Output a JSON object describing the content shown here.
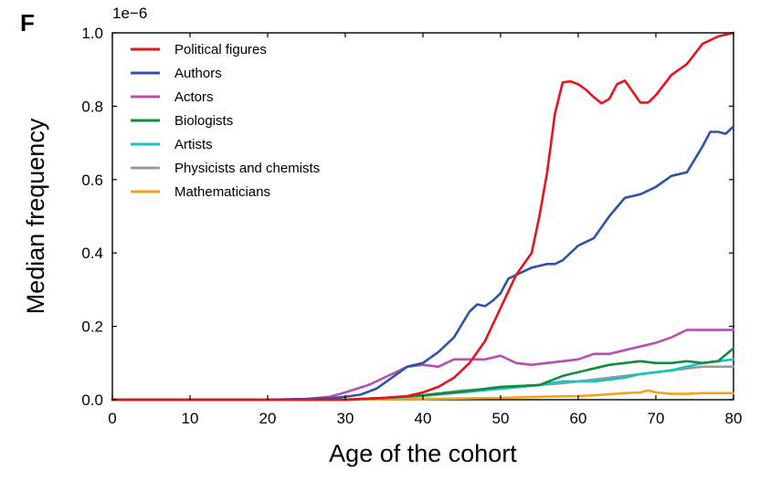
{
  "panel_letter": "F",
  "chart_data": {
    "type": "line",
    "title": "",
    "xlabel": "Age of the cohort",
    "ylabel": "Median frequency",
    "y_scale_note": "1e−6",
    "xlim": [
      0,
      80
    ],
    "ylim": [
      0,
      1.0
    ],
    "xticks": [
      0,
      10,
      20,
      30,
      40,
      50,
      60,
      70,
      80
    ],
    "yticks": [
      0.0,
      0.2,
      0.4,
      0.6,
      0.8,
      1.0
    ],
    "xtick_labels": [
      "0",
      "10",
      "20",
      "30",
      "40",
      "50",
      "60",
      "70",
      "80"
    ],
    "ytick_labels": [
      "0.0",
      "0.2",
      "0.4",
      "0.6",
      "0.8",
      "1.0"
    ],
    "grid": false,
    "legend_position": "top-left",
    "series": [
      {
        "name": "Political figures",
        "color": "#e8141b",
        "x": [
          0,
          20,
          30,
          35,
          38,
          40,
          42,
          44,
          46,
          48,
          50,
          52,
          54,
          55,
          56,
          57,
          58,
          59,
          60,
          61,
          62,
          63,
          64,
          65,
          66,
          67,
          68,
          69,
          70,
          72,
          74,
          76,
          78,
          80
        ],
        "y": [
          0,
          0,
          0,
          0.005,
          0.01,
          0.02,
          0.035,
          0.06,
          0.1,
          0.16,
          0.25,
          0.34,
          0.4,
          0.5,
          0.62,
          0.78,
          0.865,
          0.868,
          0.86,
          0.845,
          0.825,
          0.808,
          0.82,
          0.86,
          0.87,
          0.84,
          0.81,
          0.81,
          0.83,
          0.885,
          0.915,
          0.97,
          0.99,
          1.0
        ]
      },
      {
        "name": "Authors",
        "color": "#2c54a8",
        "x": [
          0,
          20,
          25,
          28,
          30,
          32,
          34,
          36,
          38,
          40,
          42,
          44,
          46,
          47,
          48,
          49,
          50,
          51,
          52,
          54,
          56,
          57,
          58,
          59,
          60,
          62,
          64,
          66,
          68,
          69,
          70,
          72,
          74,
          76,
          77,
          78,
          79,
          80
        ],
        "y": [
          0,
          0,
          0.002,
          0.004,
          0.008,
          0.014,
          0.03,
          0.06,
          0.09,
          0.1,
          0.13,
          0.17,
          0.24,
          0.26,
          0.255,
          0.27,
          0.29,
          0.33,
          0.34,
          0.36,
          0.37,
          0.37,
          0.38,
          0.4,
          0.42,
          0.44,
          0.5,
          0.55,
          0.56,
          0.57,
          0.58,
          0.61,
          0.62,
          0.69,
          0.73,
          0.73,
          0.725,
          0.745
        ]
      },
      {
        "name": "Actors",
        "color": "#b84fb2",
        "x": [
          0,
          20,
          25,
          28,
          30,
          33,
          36,
          38,
          40,
          42,
          44,
          46,
          48,
          50,
          52,
          54,
          56,
          58,
          60,
          62,
          64,
          66,
          68,
          70,
          72,
          74,
          76,
          78,
          80
        ],
        "y": [
          0,
          0,
          0.002,
          0.008,
          0.02,
          0.04,
          0.07,
          0.09,
          0.095,
          0.09,
          0.11,
          0.11,
          0.11,
          0.12,
          0.1,
          0.095,
          0.1,
          0.105,
          0.11,
          0.125,
          0.125,
          0.135,
          0.145,
          0.155,
          0.17,
          0.19,
          0.19,
          0.19,
          0.19
        ]
      },
      {
        "name": "Biologists",
        "color": "#138a3d",
        "x": [
          0,
          30,
          35,
          40,
          45,
          50,
          55,
          58,
          60,
          62,
          64,
          66,
          68,
          70,
          72,
          74,
          76,
          78,
          80
        ],
        "y": [
          0,
          0,
          0.005,
          0.012,
          0.022,
          0.035,
          0.04,
          0.065,
          0.075,
          0.085,
          0.095,
          0.1,
          0.105,
          0.1,
          0.1,
          0.105,
          0.1,
          0.105,
          0.14
        ]
      },
      {
        "name": "Artists",
        "color": "#15c3c3",
        "x": [
          0,
          30,
          35,
          40,
          45,
          50,
          55,
          58,
          60,
          62,
          64,
          66,
          68,
          70,
          72,
          74,
          76,
          78,
          80
        ],
        "y": [
          0,
          0,
          0.004,
          0.01,
          0.02,
          0.03,
          0.04,
          0.05,
          0.05,
          0.05,
          0.055,
          0.06,
          0.07,
          0.075,
          0.08,
          0.09,
          0.1,
          0.105,
          0.11
        ]
      },
      {
        "name": "Physicists and chemists",
        "color": "#999999",
        "x": [
          0,
          30,
          35,
          40,
          45,
          50,
          55,
          58,
          60,
          62,
          64,
          66,
          68,
          70,
          72,
          74,
          76,
          78,
          80
        ],
        "y": [
          0,
          0,
          0.005,
          0.012,
          0.025,
          0.03,
          0.04,
          0.045,
          0.05,
          0.055,
          0.06,
          0.065,
          0.07,
          0.075,
          0.08,
          0.085,
          0.09,
          0.09,
          0.09
        ]
      },
      {
        "name": "Mathematicians",
        "color": "#f5a21b",
        "x": [
          0,
          30,
          40,
          50,
          55,
          60,
          62,
          64,
          66,
          68,
          69,
          70,
          72,
          74,
          76,
          78,
          80
        ],
        "y": [
          0,
          0,
          0.002,
          0.005,
          0.008,
          0.01,
          0.012,
          0.015,
          0.018,
          0.02,
          0.025,
          0.02,
          0.016,
          0.016,
          0.018,
          0.018,
          0.018
        ]
      }
    ]
  }
}
